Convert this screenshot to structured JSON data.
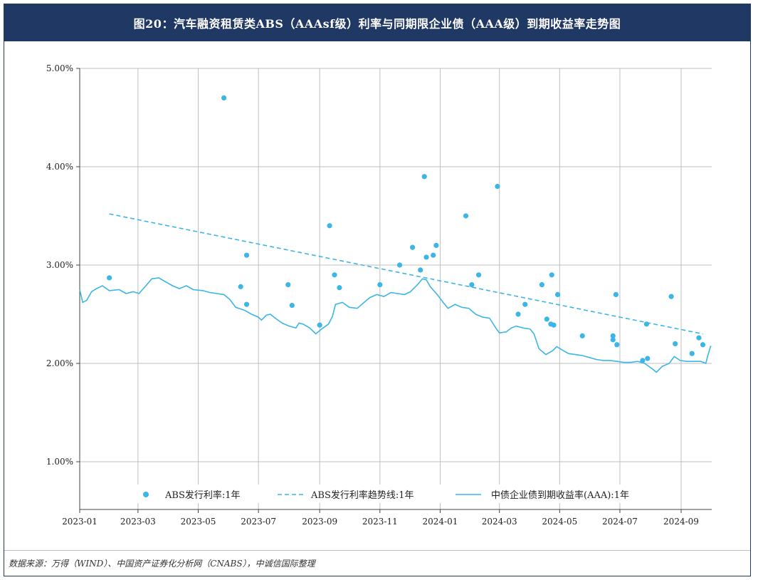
{
  "title": "图20：汽车融资租赁类ABS（AAAsf级）利率与同期限企业债（AAA级）到期收益率走势图",
  "source": "数据来源：万得（WIND）、中国资产证券化分析网（CNABS），中诚信国际整理",
  "colors": {
    "accent": "#1f3864",
    "series": "#3bb6e6",
    "grid": "#bfbfbf"
  },
  "chart_data": {
    "type": "scatter",
    "title": "图20：汽车融资租赁类ABS（AAAsf级）利率与同期限企业债（AAA级）到期收益率走势图",
    "xlabel": "",
    "ylabel": "",
    "x_ticks": [
      "2023-01",
      "2023-03",
      "2023-05",
      "2023-07",
      "2023-09",
      "2023-11",
      "2024-01",
      "2024-03",
      "2024-05",
      "2024-07",
      "2024-09"
    ],
    "y_ticks": [
      "1.00%",
      "2.00%",
      "3.00%",
      "4.00%",
      "5.00%"
    ],
    "ylim": [
      1.0,
      5.0
    ],
    "xlim": [
      "2023-01-01",
      "2024-10-02"
    ],
    "grid": true,
    "legend_position": "bottom",
    "legend": [
      "ABS发行利率:1年",
      "ABS发行利率趋势线:1年",
      "中债企业债到期收益率(AAA):1年"
    ],
    "series": [
      {
        "name": "ABS发行利率:1年",
        "kind": "scatter",
        "points": [
          [
            "2023-01-31",
            2.87
          ],
          [
            "2023-05-27",
            4.7
          ],
          [
            "2023-06-13",
            2.78
          ],
          [
            "2023-06-19",
            3.1
          ],
          [
            "2023-06-19",
            2.6
          ],
          [
            "2023-07-31",
            2.8
          ],
          [
            "2023-08-04",
            2.59
          ],
          [
            "2023-09-01",
            2.39
          ],
          [
            "2023-09-11",
            3.4
          ],
          [
            "2023-09-16",
            2.9
          ],
          [
            "2023-09-21",
            2.77
          ],
          [
            "2023-11-01",
            2.8
          ],
          [
            "2023-11-21",
            3.0
          ],
          [
            "2023-12-04",
            3.18
          ],
          [
            "2023-12-12",
            2.95
          ],
          [
            "2023-12-16",
            3.9
          ],
          [
            "2023-12-18",
            3.08
          ],
          [
            "2023-12-25",
            3.1
          ],
          [
            "2023-12-28",
            3.2
          ],
          [
            "2024-01-27",
            3.5
          ],
          [
            "2024-02-02",
            2.8
          ],
          [
            "2024-02-09",
            2.9
          ],
          [
            "2024-02-28",
            3.8
          ],
          [
            "2024-03-20",
            2.5
          ],
          [
            "2024-03-27",
            2.6
          ],
          [
            "2024-04-13",
            2.8
          ],
          [
            "2024-04-18",
            2.45
          ],
          [
            "2024-04-22",
            2.4
          ],
          [
            "2024-04-23",
            2.9
          ],
          [
            "2024-04-25",
            2.39
          ],
          [
            "2024-04-29",
            2.7
          ],
          [
            "2024-05-24",
            2.28
          ],
          [
            "2024-06-24",
            2.28
          ],
          [
            "2024-06-24",
            2.24
          ],
          [
            "2024-06-27",
            2.7
          ],
          [
            "2024-06-28",
            2.19
          ],
          [
            "2024-07-24",
            2.03
          ],
          [
            "2024-07-28",
            2.4
          ],
          [
            "2024-07-29",
            2.05
          ],
          [
            "2024-08-22",
            2.68
          ],
          [
            "2024-08-26",
            2.2
          ],
          [
            "2024-09-12",
            2.1
          ],
          [
            "2024-09-19",
            2.26
          ],
          [
            "2024-09-23",
            2.19
          ]
        ]
      },
      {
        "name": "ABS发行利率趋势线:1年",
        "kind": "line-dashed",
        "points": [
          [
            "2023-01-31",
            3.52
          ],
          [
            "2024-09-23",
            2.3
          ]
        ]
      },
      {
        "name": "中债企业债到期收益率(AAA):1年",
        "kind": "line",
        "points": [
          [
            "2023-01-01",
            2.75
          ],
          [
            "2023-01-04",
            2.62
          ],
          [
            "2023-01-08",
            2.64
          ],
          [
            "2023-01-13",
            2.73
          ],
          [
            "2023-01-18",
            2.76
          ],
          [
            "2023-01-24",
            2.79
          ],
          [
            "2023-01-31",
            2.74
          ],
          [
            "2023-02-10",
            2.75
          ],
          [
            "2023-02-17",
            2.71
          ],
          [
            "2023-02-24",
            2.73
          ],
          [
            "2023-03-02",
            2.71
          ],
          [
            "2023-03-09",
            2.79
          ],
          [
            "2023-03-15",
            2.86
          ],
          [
            "2023-03-22",
            2.87
          ],
          [
            "2023-03-29",
            2.83
          ],
          [
            "2023-04-05",
            2.79
          ],
          [
            "2023-04-12",
            2.76
          ],
          [
            "2023-04-19",
            2.79
          ],
          [
            "2023-04-26",
            2.75
          ],
          [
            "2023-05-06",
            2.74
          ],
          [
            "2023-05-13",
            2.72
          ],
          [
            "2023-05-20",
            2.71
          ],
          [
            "2023-05-27",
            2.7
          ],
          [
            "2023-06-02",
            2.65
          ],
          [
            "2023-06-08",
            2.57
          ],
          [
            "2023-06-17",
            2.54
          ],
          [
            "2023-06-24",
            2.5
          ],
          [
            "2023-07-01",
            2.47
          ],
          [
            "2023-07-04",
            2.44
          ],
          [
            "2023-07-09",
            2.49
          ],
          [
            "2023-07-13",
            2.5
          ],
          [
            "2023-07-18",
            2.46
          ],
          [
            "2023-07-25",
            2.41
          ],
          [
            "2023-08-01",
            2.38
          ],
          [
            "2023-08-08",
            2.36
          ],
          [
            "2023-08-11",
            2.41
          ],
          [
            "2023-08-15",
            2.4
          ],
          [
            "2023-08-22",
            2.36
          ],
          [
            "2023-08-28",
            2.3
          ],
          [
            "2023-09-03",
            2.35
          ],
          [
            "2023-09-10",
            2.4
          ],
          [
            "2023-09-14",
            2.48
          ],
          [
            "2023-09-17",
            2.6
          ],
          [
            "2023-09-24",
            2.62
          ],
          [
            "2023-10-01",
            2.57
          ],
          [
            "2023-10-09",
            2.56
          ],
          [
            "2023-10-16",
            2.62
          ],
          [
            "2023-10-22",
            2.67
          ],
          [
            "2023-10-29",
            2.7
          ],
          [
            "2023-11-05",
            2.68
          ],
          [
            "2023-11-12",
            2.72
          ],
          [
            "2023-11-19",
            2.71
          ],
          [
            "2023-11-26",
            2.7
          ],
          [
            "2023-12-02",
            2.73
          ],
          [
            "2023-12-09",
            2.8
          ],
          [
            "2023-12-14",
            2.86
          ],
          [
            "2023-12-18",
            2.85
          ],
          [
            "2023-12-22",
            2.78
          ],
          [
            "2023-12-29",
            2.7
          ],
          [
            "2024-01-04",
            2.62
          ],
          [
            "2024-01-09",
            2.56
          ],
          [
            "2024-01-16",
            2.6
          ],
          [
            "2024-01-23",
            2.57
          ],
          [
            "2024-01-30",
            2.56
          ],
          [
            "2024-02-06",
            2.5
          ],
          [
            "2024-02-13",
            2.47
          ],
          [
            "2024-02-20",
            2.46
          ],
          [
            "2024-02-27",
            2.35
          ],
          [
            "2024-03-01",
            2.31
          ],
          [
            "2024-03-08",
            2.32
          ],
          [
            "2024-03-13",
            2.36
          ],
          [
            "2024-03-18",
            2.38
          ],
          [
            "2024-03-25",
            2.36
          ],
          [
            "2024-04-01",
            2.35
          ],
          [
            "2024-04-05",
            2.3
          ],
          [
            "2024-04-10",
            2.15
          ],
          [
            "2024-04-17",
            2.09
          ],
          [
            "2024-04-24",
            2.13
          ],
          [
            "2024-04-28",
            2.17
          ],
          [
            "2024-05-03",
            2.14
          ],
          [
            "2024-05-10",
            2.1
          ],
          [
            "2024-05-17",
            2.09
          ],
          [
            "2024-05-24",
            2.08
          ],
          [
            "2024-05-31",
            2.06
          ],
          [
            "2024-06-07",
            2.04
          ],
          [
            "2024-06-14",
            2.03
          ],
          [
            "2024-06-21",
            2.03
          ],
          [
            "2024-06-28",
            2.02
          ],
          [
            "2024-07-05",
            2.01
          ],
          [
            "2024-07-12",
            2.01
          ],
          [
            "2024-07-19",
            2.02
          ],
          [
            "2024-07-26",
            2.0
          ],
          [
            "2024-08-02",
            1.95
          ],
          [
            "2024-08-07",
            1.91
          ],
          [
            "2024-08-13",
            1.97
          ],
          [
            "2024-08-20",
            2.0
          ],
          [
            "2024-08-25",
            2.07
          ],
          [
            "2024-08-31",
            2.03
          ],
          [
            "2024-09-07",
            2.02
          ],
          [
            "2024-09-14",
            2.02
          ],
          [
            "2024-09-21",
            2.02
          ],
          [
            "2024-09-26",
            2.0
          ],
          [
            "2024-09-28",
            2.08
          ],
          [
            "2024-10-01",
            2.18
          ]
        ]
      }
    ]
  }
}
